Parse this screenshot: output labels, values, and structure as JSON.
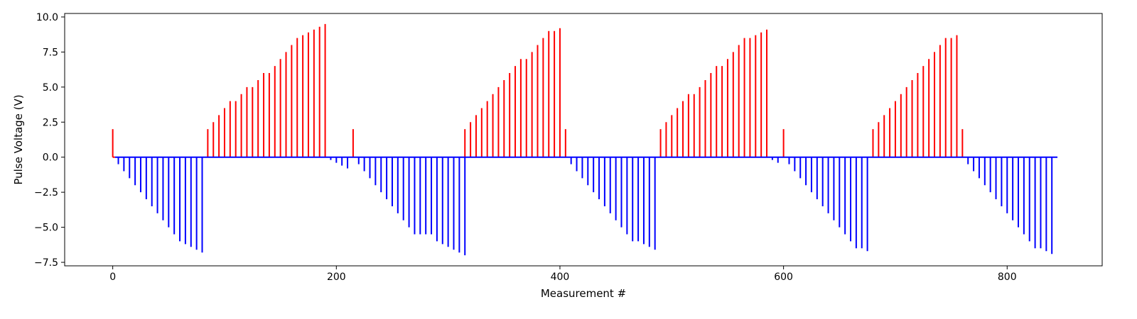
{
  "chart_data": {
    "type": "bar",
    "title": "",
    "xlabel": "Measurement #",
    "ylabel": "Pulse Voltage (V)",
    "xlim": [
      -43,
      885
    ],
    "ylim": [
      -7.75,
      10.25
    ],
    "xticks": [
      0,
      200,
      400,
      600,
      800
    ],
    "yticks": [
      -7.5,
      -5.0,
      -2.5,
      0.0,
      2.5,
      5.0,
      7.5,
      10.0
    ],
    "ytick_labels": [
      "−7.5",
      "−5.0",
      "−2.5",
      "0.0",
      "2.5",
      "5.0",
      "7.5",
      "10.0"
    ],
    "baseline": {
      "from": 0,
      "to": 845
    },
    "grid": false,
    "legend": "none",
    "colors": {
      "positive": "#ff0000",
      "negative": "#0000ff",
      "axes": "#000000"
    },
    "series": [
      {
        "color": "#ff0000",
        "points": [
          [
            0,
            2.0
          ],
          [
            85,
            2.0
          ],
          [
            90,
            2.5
          ],
          [
            95,
            3.0
          ],
          [
            100,
            3.5
          ],
          [
            105,
            4.0
          ],
          [
            110,
            4.0
          ],
          [
            115,
            4.5
          ],
          [
            120,
            5.0
          ],
          [
            125,
            5.0
          ],
          [
            130,
            5.5
          ],
          [
            135,
            6.0
          ],
          [
            140,
            6.0
          ],
          [
            145,
            6.5
          ],
          [
            150,
            7.0
          ],
          [
            155,
            7.5
          ],
          [
            160,
            8.0
          ],
          [
            165,
            8.5
          ],
          [
            170,
            8.7
          ],
          [
            175,
            8.9
          ],
          [
            180,
            9.1
          ],
          [
            185,
            9.3
          ],
          [
            190,
            9.5
          ],
          [
            215,
            2.0
          ],
          [
            315,
            2.0
          ],
          [
            320,
            2.5
          ],
          [
            325,
            3.0
          ],
          [
            330,
            3.5
          ],
          [
            335,
            4.0
          ],
          [
            340,
            4.5
          ],
          [
            345,
            5.0
          ],
          [
            350,
            5.5
          ],
          [
            355,
            6.0
          ],
          [
            360,
            6.5
          ],
          [
            365,
            7.0
          ],
          [
            370,
            7.0
          ],
          [
            375,
            7.5
          ],
          [
            380,
            8.0
          ],
          [
            385,
            8.5
          ],
          [
            390,
            9.0
          ],
          [
            395,
            9.0
          ],
          [
            400,
            9.2
          ],
          [
            405,
            2.0
          ],
          [
            490,
            2.0
          ],
          [
            495,
            2.5
          ],
          [
            500,
            3.0
          ],
          [
            505,
            3.5
          ],
          [
            510,
            4.0
          ],
          [
            515,
            4.5
          ],
          [
            520,
            4.5
          ],
          [
            525,
            5.0
          ],
          [
            530,
            5.5
          ],
          [
            535,
            6.0
          ],
          [
            540,
            6.5
          ],
          [
            545,
            6.5
          ],
          [
            550,
            7.0
          ],
          [
            555,
            7.5
          ],
          [
            560,
            8.0
          ],
          [
            565,
            8.5
          ],
          [
            570,
            8.5
          ],
          [
            575,
            8.7
          ],
          [
            580,
            8.9
          ],
          [
            585,
            9.1
          ],
          [
            600,
            2.0
          ],
          [
            680,
            2.0
          ],
          [
            685,
            2.5
          ],
          [
            690,
            3.0
          ],
          [
            695,
            3.5
          ],
          [
            700,
            4.0
          ],
          [
            705,
            4.5
          ],
          [
            710,
            5.0
          ],
          [
            715,
            5.5
          ],
          [
            720,
            6.0
          ],
          [
            725,
            6.5
          ],
          [
            730,
            7.0
          ],
          [
            735,
            7.5
          ],
          [
            740,
            8.0
          ],
          [
            745,
            8.5
          ],
          [
            750,
            8.5
          ],
          [
            755,
            8.7
          ],
          [
            760,
            2.0
          ]
        ]
      },
      {
        "color": "#0000ff",
        "points": [
          [
            5,
            -0.5
          ],
          [
            10,
            -1.0
          ],
          [
            15,
            -1.5
          ],
          [
            20,
            -2.0
          ],
          [
            25,
            -2.5
          ],
          [
            30,
            -3.0
          ],
          [
            35,
            -3.5
          ],
          [
            40,
            -4.0
          ],
          [
            45,
            -4.5
          ],
          [
            50,
            -5.0
          ],
          [
            55,
            -5.5
          ],
          [
            60,
            -6.0
          ],
          [
            65,
            -6.2
          ],
          [
            70,
            -6.4
          ],
          [
            75,
            -6.6
          ],
          [
            80,
            -6.8
          ],
          [
            195,
            -0.2
          ],
          [
            200,
            -0.4
          ],
          [
            205,
            -0.6
          ],
          [
            210,
            -0.8
          ],
          [
            220,
            -0.5
          ],
          [
            225,
            -1.0
          ],
          [
            230,
            -1.5
          ],
          [
            235,
            -2.0
          ],
          [
            240,
            -2.5
          ],
          [
            245,
            -3.0
          ],
          [
            250,
            -3.5
          ],
          [
            255,
            -4.0
          ],
          [
            260,
            -4.5
          ],
          [
            265,
            -5.0
          ],
          [
            270,
            -5.5
          ],
          [
            275,
            -5.5
          ],
          [
            280,
            -5.5
          ],
          [
            285,
            -5.5
          ],
          [
            290,
            -6.0
          ],
          [
            295,
            -6.2
          ],
          [
            300,
            -6.4
          ],
          [
            305,
            -6.6
          ],
          [
            310,
            -6.8
          ],
          [
            315,
            -7.0
          ],
          [
            410,
            -0.5
          ],
          [
            415,
            -1.0
          ],
          [
            420,
            -1.5
          ],
          [
            425,
            -2.0
          ],
          [
            430,
            -2.5
          ],
          [
            435,
            -3.0
          ],
          [
            440,
            -3.5
          ],
          [
            445,
            -4.0
          ],
          [
            450,
            -4.5
          ],
          [
            455,
            -5.0
          ],
          [
            460,
            -5.5
          ],
          [
            465,
            -6.0
          ],
          [
            470,
            -6.0
          ],
          [
            475,
            -6.2
          ],
          [
            480,
            -6.4
          ],
          [
            485,
            -6.6
          ],
          [
            590,
            -0.2
          ],
          [
            595,
            -0.4
          ],
          [
            605,
            -0.5
          ],
          [
            610,
            -1.0
          ],
          [
            615,
            -1.5
          ],
          [
            620,
            -2.0
          ],
          [
            625,
            -2.5
          ],
          [
            630,
            -3.0
          ],
          [
            635,
            -3.5
          ],
          [
            640,
            -4.0
          ],
          [
            645,
            -4.5
          ],
          [
            650,
            -5.0
          ],
          [
            655,
            -5.5
          ],
          [
            660,
            -6.0
          ],
          [
            665,
            -6.5
          ],
          [
            670,
            -6.5
          ],
          [
            675,
            -6.7
          ],
          [
            765,
            -0.5
          ],
          [
            770,
            -1.0
          ],
          [
            775,
            -1.5
          ],
          [
            780,
            -2.0
          ],
          [
            785,
            -2.5
          ],
          [
            790,
            -3.0
          ],
          [
            795,
            -3.5
          ],
          [
            800,
            -4.0
          ],
          [
            805,
            -4.5
          ],
          [
            810,
            -5.0
          ],
          [
            815,
            -5.5
          ],
          [
            820,
            -6.0
          ],
          [
            825,
            -6.5
          ],
          [
            830,
            -6.5
          ],
          [
            835,
            -6.7
          ],
          [
            840,
            -6.9
          ]
        ]
      }
    ]
  }
}
